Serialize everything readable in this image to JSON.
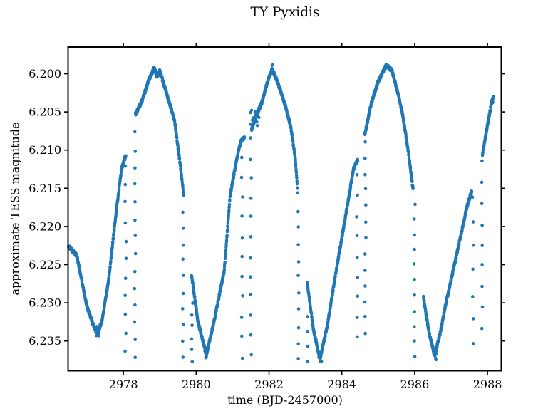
{
  "chart_data": {
    "type": "scatter",
    "title": "TY Pyxidis",
    "xlabel": "time (BJD-2457000)",
    "ylabel": "approximate TESS magnitude",
    "xlim": [
      2976.48,
      2988.38
    ],
    "ylim_top_to_bottom": [
      6.1965,
      6.2389
    ],
    "y_inverted": true,
    "grid": false,
    "legend": "none",
    "marker_color": "#1f77b4",
    "axis_color": "#000000",
    "xticks": [
      {
        "v": 2978,
        "label": "2978"
      },
      {
        "v": 2980,
        "label": "2980"
      },
      {
        "v": 2982,
        "label": "2982"
      },
      {
        "v": 2984,
        "label": "2984"
      },
      {
        "v": 2986,
        "label": "2986"
      },
      {
        "v": 2988,
        "label": "2988"
      }
    ],
    "yticks": [
      {
        "v": 6.2,
        "label": "6.200"
      },
      {
        "v": 6.205,
        "label": "6.205"
      },
      {
        "v": 6.21,
        "label": "6.210"
      },
      {
        "v": 6.215,
        "label": "6.215"
      },
      {
        "v": 6.22,
        "label": "6.220"
      },
      {
        "v": 6.225,
        "label": "6.225"
      },
      {
        "v": 6.23,
        "label": "6.230"
      },
      {
        "v": 6.235,
        "label": "6.235"
      }
    ],
    "cadence_days": 0.003,
    "band_jitter_mag": 0.0002,
    "marker_radius_px": 2.15,
    "band_segments": [
      [
        [
          2976.49,
          6.2226
        ],
        [
          2976.72,
          6.2238
        ],
        [
          2977.0,
          6.2305
        ],
        [
          2977.18,
          6.233
        ],
        [
          2977.3,
          6.234
        ],
        [
          2977.42,
          6.2322
        ],
        [
          2977.6,
          6.2268
        ],
        [
          2977.78,
          6.219
        ],
        [
          2977.95,
          6.2124
        ],
        [
          2978.07,
          6.2106
        ]
      ],
      [
        [
          2978.33,
          6.2053
        ],
        [
          2978.5,
          6.2037
        ],
        [
          2978.7,
          6.2008
        ],
        [
          2978.85,
          6.1992
        ],
        [
          2978.92,
          6.2004
        ],
        [
          2979.0,
          6.1996
        ],
        [
          2979.1,
          6.2012
        ],
        [
          2979.25,
          6.2036
        ],
        [
          2979.4,
          6.206
        ],
        [
          2979.55,
          6.2115
        ],
        [
          2979.66,
          6.216
        ]
      ],
      [
        [
          2979.87,
          6.2263
        ],
        [
          2980.05,
          6.2325
        ],
        [
          2980.28,
          6.2368
        ],
        [
          2980.5,
          6.2322
        ],
        [
          2980.77,
          6.2258
        ],
        [
          2980.93,
          6.216
        ],
        [
          2981.1,
          6.2115
        ],
        [
          2981.22,
          6.2089
        ],
        [
          2981.33,
          6.2083
        ]
      ],
      [
        [
          2981.52,
          6.2073
        ],
        [
          2981.65,
          6.2055
        ],
        [
          2981.8,
          6.2038
        ],
        [
          2981.95,
          6.2012
        ],
        [
          2982.08,
          6.1994
        ],
        [
          2982.18,
          6.2004
        ],
        [
          2982.3,
          6.202
        ],
        [
          2982.45,
          6.2042
        ],
        [
          2982.6,
          6.207
        ],
        [
          2982.72,
          6.211
        ],
        [
          2982.79,
          6.2156
        ]
      ],
      [
        [
          2983.05,
          6.2275
        ],
        [
          2983.22,
          6.2335
        ],
        [
          2983.4,
          6.2374
        ],
        [
          2983.6,
          6.233
        ],
        [
          2983.81,
          6.2268
        ],
        [
          2984.0,
          6.2215
        ],
        [
          2984.18,
          6.2165
        ],
        [
          2984.32,
          6.2125
        ],
        [
          2984.44,
          6.2112
        ]
      ],
      [
        [
          2984.63,
          6.208
        ],
        [
          2984.8,
          6.204
        ],
        [
          2985.0,
          6.201
        ],
        [
          2985.22,
          6.1989
        ],
        [
          2985.38,
          6.1996
        ],
        [
          2985.52,
          6.2022
        ],
        [
          2985.67,
          6.2053
        ],
        [
          2985.82,
          6.21
        ],
        [
          2985.96,
          6.2153
        ]
      ],
      [
        [
          2986.24,
          6.2293
        ],
        [
          2986.4,
          6.234
        ],
        [
          2986.55,
          6.2369
        ],
        [
          2986.7,
          6.234
        ],
        [
          2986.84,
          6.2305
        ],
        [
          2987.0,
          6.227
        ],
        [
          2987.14,
          6.224
        ],
        [
          2987.3,
          6.2205
        ],
        [
          2987.43,
          6.2175
        ],
        [
          2987.57,
          6.2153
        ]
      ],
      [
        [
          2987.86,
          6.2106
        ],
        [
          2988.0,
          6.2068
        ],
        [
          2988.1,
          6.204
        ],
        [
          2988.16,
          6.203
        ]
      ]
    ],
    "eclipse_strings": [
      {
        "t": 2978.06,
        "top": 6.212,
        "bottom": 6.2365,
        "n": 11
      },
      {
        "t": 2978.32,
        "top": 6.2078,
        "bottom": 6.2372,
        "n": 14
      },
      {
        "t": 2979.64,
        "top": 6.218,
        "bottom": 6.2372,
        "n": 10
      },
      {
        "t": 2979.89,
        "top": 6.23,
        "bottom": 6.2376,
        "n": 6
      },
      {
        "t": 2981.26,
        "top": 6.2108,
        "bottom": 6.2372,
        "n": 11
      },
      {
        "t": 2981.5,
        "top": 6.2085,
        "bottom": 6.2368,
        "n": 12
      },
      {
        "t": 2982.81,
        "top": 6.218,
        "bottom": 6.2374,
        "n": 10
      },
      {
        "t": 2983.06,
        "top": 6.232,
        "bottom": 6.2376,
        "n": 4
      },
      {
        "t": 2984.42,
        "top": 6.2134,
        "bottom": 6.2345,
        "n": 9
      },
      {
        "t": 2984.65,
        "top": 6.209,
        "bottom": 6.234,
        "n": 13
      },
      {
        "t": 2986.0,
        "top": 6.217,
        "bottom": 6.237,
        "n": 11
      },
      {
        "t": 2987.6,
        "top": 6.216,
        "bottom": 6.2355,
        "n": 7
      },
      {
        "t": 2987.85,
        "top": 6.2115,
        "bottom": 6.2332,
        "n": 9
      }
    ],
    "clusters": [
      {
        "t": 2978.97,
        "mag": 6.2002,
        "n": 4,
        "dt": 0.05,
        "dm": 0.0006
      },
      {
        "t": 2981.6,
        "mag": 6.2058,
        "n": 14,
        "dt": 0.13,
        "dm": 0.0013
      },
      {
        "t": 2982.1,
        "mag": 6.1988,
        "n": 2,
        "dt": 0.015,
        "dm": 0.0003
      },
      {
        "t": 2977.3,
        "mag": 6.2338,
        "n": 8,
        "dt": 0.06,
        "dm": 0.0007
      },
      {
        "t": 2980.28,
        "mag": 6.2366,
        "n": 8,
        "dt": 0.05,
        "dm": 0.0007
      },
      {
        "t": 2983.4,
        "mag": 6.2372,
        "n": 8,
        "dt": 0.05,
        "dm": 0.0007
      },
      {
        "t": 2986.55,
        "mag": 6.2368,
        "n": 8,
        "dt": 0.05,
        "dm": 0.0007
      },
      {
        "t": 2988.13,
        "mag": 6.2035,
        "n": 4,
        "dt": 0.02,
        "dm": 0.0004
      }
    ]
  }
}
